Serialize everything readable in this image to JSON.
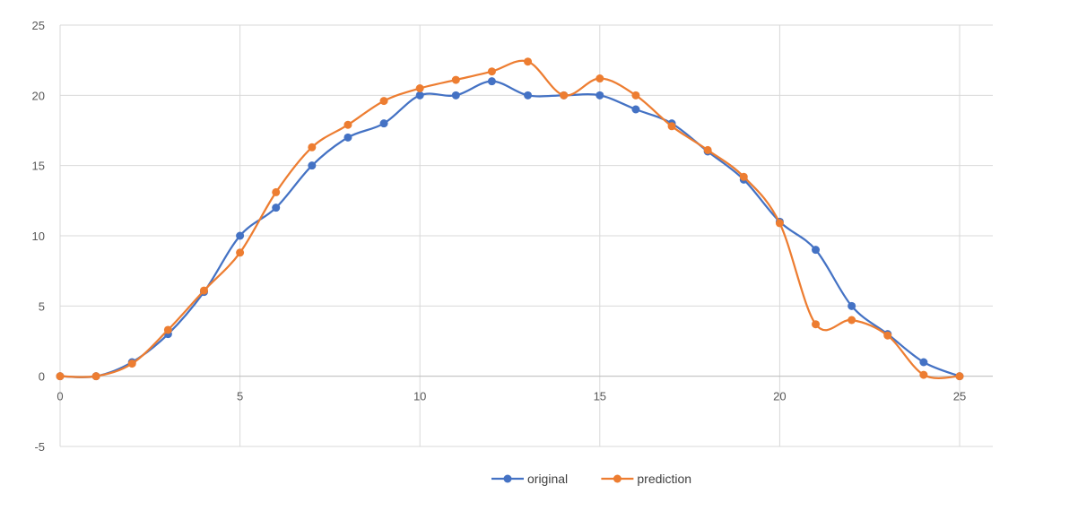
{
  "chart_data": {
    "type": "scatter",
    "subtype": "smoothed-line-with-markers",
    "title": "",
    "xlabel": "",
    "ylabel": "",
    "xlim": [
      0,
      25
    ],
    "ylim": [
      -5,
      25
    ],
    "x_ticks": [
      "0",
      "5",
      "10",
      "15",
      "20",
      "25"
    ],
    "y_ticks": [
      "-5",
      "0",
      "5",
      "10",
      "15",
      "20",
      "25"
    ],
    "grid": true,
    "legend": "bottom",
    "x": [
      0,
      1,
      2,
      3,
      4,
      5,
      6,
      7,
      8,
      9,
      10,
      11,
      12,
      13,
      14,
      15,
      16,
      17,
      18,
      19,
      20,
      21,
      22,
      23,
      24,
      25
    ],
    "series": [
      {
        "name": "original",
        "color": "#4472C4",
        "values": [
          0,
          0,
          1,
          3,
          6,
          10,
          12,
          15,
          17,
          18,
          20,
          20,
          21,
          20,
          20,
          20,
          19,
          18,
          16,
          14,
          11,
          9,
          5,
          3,
          1,
          0
        ]
      },
      {
        "name": "prediction",
        "color": "#ED7D31",
        "values": [
          0,
          0,
          0.9,
          3.3,
          6.1,
          8.8,
          13.1,
          16.3,
          17.9,
          19.6,
          20.5,
          21.1,
          21.7,
          22.4,
          20,
          21.2,
          20,
          17.8,
          16.1,
          14.2,
          10.9,
          3.7,
          4,
          2.9,
          0.1,
          0
        ]
      }
    ]
  }
}
